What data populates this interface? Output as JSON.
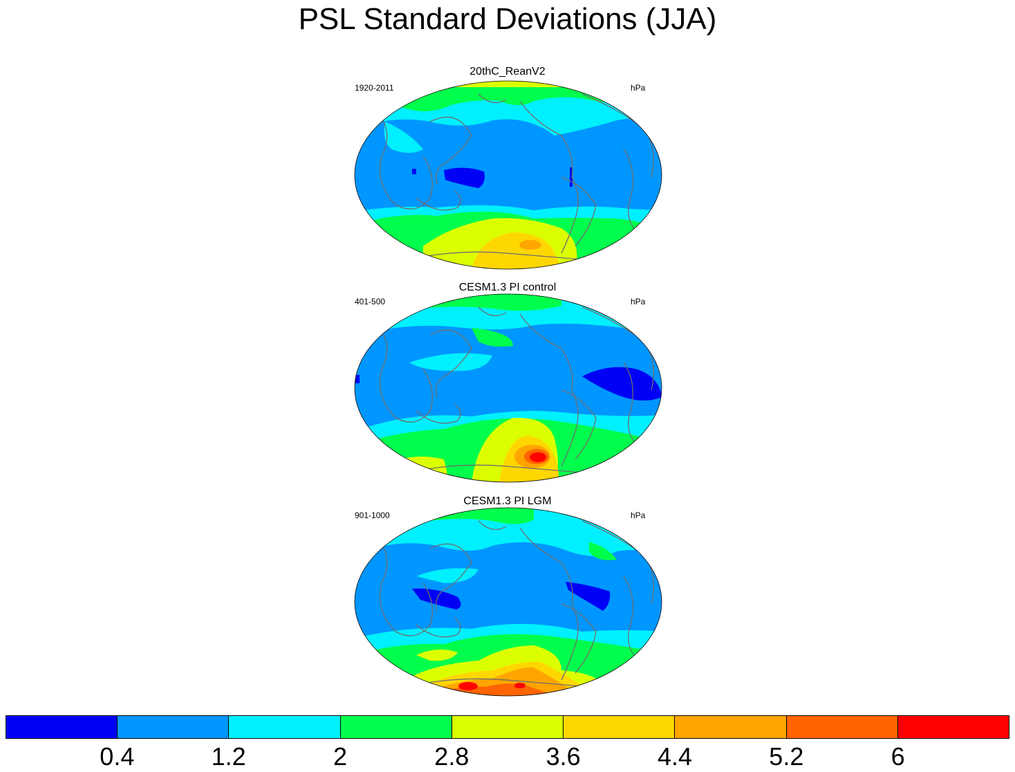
{
  "title": "PSL Standard Deviations (JJA)",
  "panels": [
    {
      "title": "20thC_ReanV2",
      "period": "1920-2011",
      "units": "hPa"
    },
    {
      "title": "CESM1.3 PI control",
      "period": "401-500",
      "units": "hPa"
    },
    {
      "title": "CESM1.3 PI LGM",
      "period": "901-1000",
      "units": "hPa"
    }
  ],
  "colorbar": {
    "labels": [
      "0.4",
      "1.2",
      "2",
      "2.8",
      "3.6",
      "4.4",
      "5.2",
      "6"
    ],
    "colors": [
      "#0000f5",
      "#0096ff",
      "#00f0ff",
      "#00ff4c",
      "#dcff00",
      "#ffd700",
      "#ffa500",
      "#ff6400",
      "#ff0000"
    ]
  }
}
